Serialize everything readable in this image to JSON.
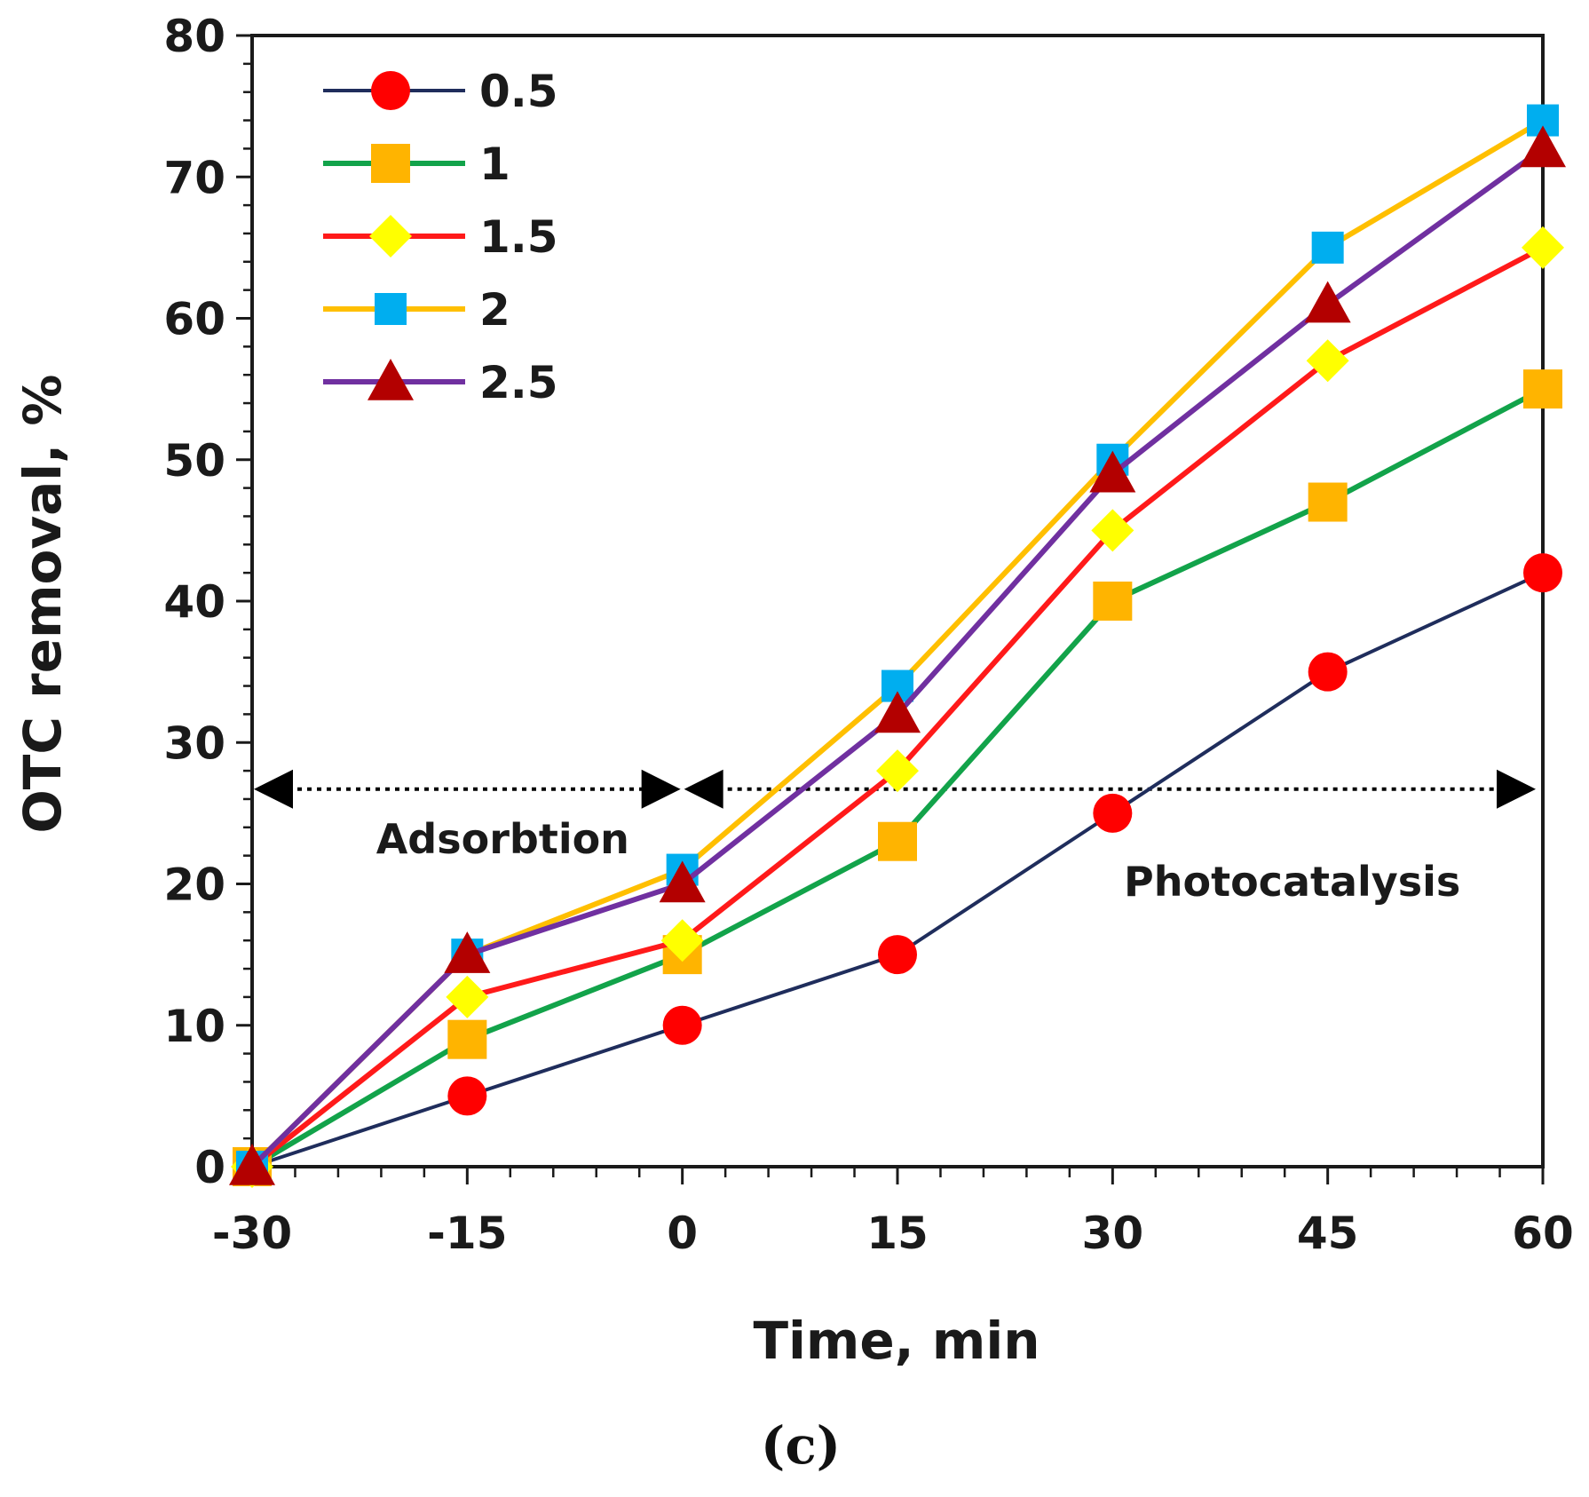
{
  "chart_data": {
    "type": "line",
    "title": "",
    "xlabel": "Time, min",
    "ylabel": "OTC removal, %",
    "x": [
      -30,
      -15,
      0,
      15,
      30,
      45,
      60
    ],
    "xlim": [
      -30,
      60
    ],
    "ylim": [
      0,
      80
    ],
    "xticks": [
      -30,
      -15,
      0,
      15,
      30,
      45,
      60
    ],
    "yticks": [
      0,
      10,
      20,
      30,
      40,
      50,
      60,
      70,
      80
    ],
    "grid": false,
    "legend_position": "top-left",
    "series": [
      {
        "name": "0.5",
        "line_color": "#1f2d5c",
        "marker": "circle",
        "marker_color": "#ff0000",
        "values": [
          0,
          5,
          10,
          15,
          25,
          35,
          42
        ]
      },
      {
        "name": "1",
        "line_color": "#12a34a",
        "marker": "square",
        "marker_color": "#ffb400",
        "values": [
          0,
          9,
          15,
          23,
          40,
          47,
          55
        ]
      },
      {
        "name": "1.5",
        "line_color": "#ff1a1a",
        "marker": "diamond",
        "marker_color": "#ffff00",
        "values": [
          0,
          12,
          16,
          28,
          45,
          57,
          65
        ]
      },
      {
        "name": "2",
        "line_color": "#ffbf00",
        "marker": "square",
        "marker_color": "#00aeef",
        "values": [
          0,
          15,
          21,
          34,
          50,
          65,
          74
        ]
      },
      {
        "name": "2.5",
        "line_color": "#7030a0",
        "marker": "triangle",
        "marker_color": "#b30000",
        "values": [
          0,
          15,
          20,
          32,
          49,
          61,
          72
        ]
      }
    ],
    "annotations": [
      {
        "text": "Adsorbtion",
        "x_range": [
          -30,
          0
        ],
        "y": 26.7
      },
      {
        "text": "Photocatalysis",
        "x_range": [
          0,
          60
        ],
        "y": 26.7
      }
    ],
    "panel_label": "(c)"
  }
}
